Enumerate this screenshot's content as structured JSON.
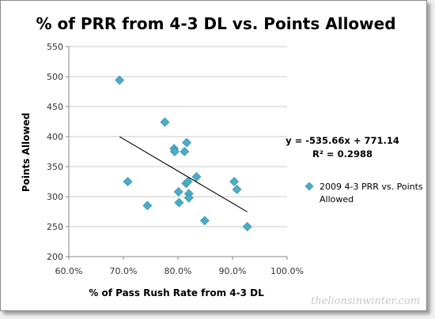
{
  "chart_data": {
    "type": "scatter",
    "title": "% of PRR from 4-3 DL vs. Points Allowed",
    "xlabel": "% of Pass Rush Rate from  4-3 DL",
    "ylabel": "Points Allowed",
    "xlim": [
      0.6,
      1.0
    ],
    "ylim": [
      200,
      550
    ],
    "x_ticks": [
      0.6,
      0.7,
      0.8,
      0.9,
      1.0
    ],
    "x_tick_labels": [
      "60.0%",
      "70.0%",
      "80.0%",
      "90.0%",
      "100.0%"
    ],
    "y_ticks": [
      200,
      250,
      300,
      350,
      400,
      450,
      500,
      550
    ],
    "y_tick_labels": [
      "200",
      "250",
      "300",
      "350",
      "400",
      "450",
      "500",
      "550"
    ],
    "grid": "horizontal",
    "legend_position": "right",
    "series": [
      {
        "name": "2009 4-3 PRR vs. Points Allowed",
        "color": "#4bacc6",
        "marker": "diamond",
        "points": [
          {
            "x": 0.693,
            "y": 494
          },
          {
            "x": 0.708,
            "y": 325
          },
          {
            "x": 0.744,
            "y": 285
          },
          {
            "x": 0.776,
            "y": 424
          },
          {
            "x": 0.793,
            "y": 380
          },
          {
            "x": 0.794,
            "y": 375
          },
          {
            "x": 0.801,
            "y": 308
          },
          {
            "x": 0.802,
            "y": 290
          },
          {
            "x": 0.812,
            "y": 375
          },
          {
            "x": 0.815,
            "y": 322
          },
          {
            "x": 0.816,
            "y": 390
          },
          {
            "x": 0.818,
            "y": 325
          },
          {
            "x": 0.82,
            "y": 305
          },
          {
            "x": 0.82,
            "y": 298
          },
          {
            "x": 0.834,
            "y": 333
          },
          {
            "x": 0.849,
            "y": 260
          },
          {
            "x": 0.903,
            "y": 325
          },
          {
            "x": 0.908,
            "y": 312
          },
          {
            "x": 0.927,
            "y": 250
          }
        ]
      }
    ],
    "trendline": {
      "type": "linear",
      "slope": -535.66,
      "intercept": 771.14,
      "x_range": [
        0.693,
        0.927
      ],
      "color": "#000000",
      "equation_lines": [
        "y = -535.66x  + 771.14",
        "R² = 0.2988"
      ]
    }
  },
  "watermark": "thelionsinwinter.com"
}
